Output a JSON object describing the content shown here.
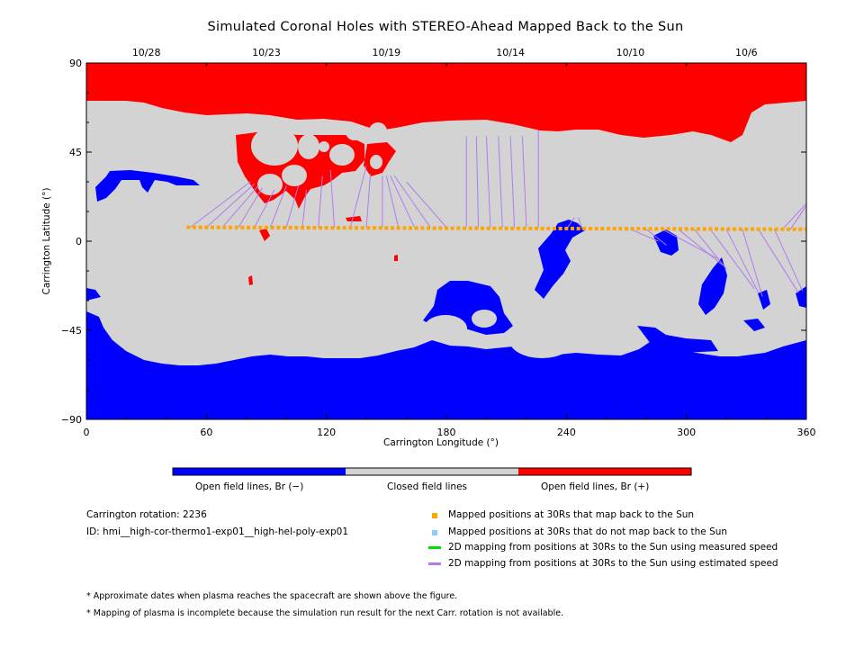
{
  "chart_data": {
    "type": "heatmap",
    "title": "Simulated Coronal Holes with STEREO-Ahead Mapped Back to the Sun",
    "xlabel": "Carrington Longitude (°)",
    "ylabel": "Carrington Latitude (°)",
    "xlim": [
      0,
      360
    ],
    "ylim": [
      -90,
      90
    ],
    "x_ticks": [
      0,
      60,
      120,
      180,
      240,
      300,
      360
    ],
    "y_ticks": [
      90,
      45,
      0,
      -45,
      -90
    ],
    "y_tick_labels": [
      "90",
      "45",
      "0",
      "−45",
      "−90"
    ],
    "top_axis_dates": [
      {
        "label": "10/28",
        "lon": 30
      },
      {
        "label": "10/23",
        "lon": 90
      },
      {
        "label": "10/19",
        "lon": 150
      },
      {
        "label": "10/14",
        "lon": 212
      },
      {
        "label": "10/10",
        "lon": 272
      },
      {
        "label": "10/6",
        "lon": 330
      }
    ],
    "categories": [
      "Open field lines, Br (−)",
      "Closed field lines",
      "Open field lines, Br (+)"
    ],
    "category_colors": [
      "#0000ff",
      "#d3d3d3",
      "#ff0000"
    ],
    "mapped_positions": {
      "lon_start": 51,
      "lon_end": 360,
      "lat_start": 7,
      "lat_end": 6,
      "color": "#ffa500"
    },
    "estimated_speed_lines": [
      {
        "from_lon": 52,
        "from_lat": 7,
        "to_lon": 82,
        "to_lat": 30
      },
      {
        "from_lon": 60,
        "from_lat": 7,
        "to_lon": 84,
        "to_lat": 29
      },
      {
        "from_lon": 68,
        "from_lat": 7,
        "to_lon": 86,
        "to_lat": 28
      },
      {
        "from_lon": 76,
        "from_lat": 7,
        "to_lon": 88,
        "to_lat": 27
      },
      {
        "from_lon": 84,
        "from_lat": 7,
        "to_lon": 94,
        "to_lat": 26
      },
      {
        "from_lon": 92,
        "from_lat": 7,
        "to_lon": 100,
        "to_lat": 28
      },
      {
        "from_lon": 100,
        "from_lat": 7,
        "to_lon": 106,
        "to_lat": 28
      },
      {
        "from_lon": 108,
        "from_lat": 7,
        "to_lon": 110,
        "to_lat": 26
      },
      {
        "from_lon": 116,
        "from_lat": 7,
        "to_lon": 118,
        "to_lat": 33
      },
      {
        "from_lon": 124,
        "from_lat": 7,
        "to_lon": 122,
        "to_lat": 36
      },
      {
        "from_lon": 132,
        "from_lat": 7,
        "to_lon": 140,
        "to_lat": 38
      },
      {
        "from_lon": 140,
        "from_lat": 7,
        "to_lon": 142,
        "to_lat": 34
      },
      {
        "from_lon": 148,
        "from_lat": 7,
        "to_lon": 148,
        "to_lat": 33
      },
      {
        "from_lon": 156,
        "from_lat": 7,
        "to_lon": 150,
        "to_lat": 33
      },
      {
        "from_lon": 164,
        "from_lat": 7,
        "to_lon": 152,
        "to_lat": 33
      },
      {
        "from_lon": 172,
        "from_lat": 7,
        "to_lon": 154,
        "to_lat": 33
      },
      {
        "from_lon": 180,
        "from_lat": 7,
        "to_lon": 160,
        "to_lat": 30
      },
      {
        "from_lon": 190,
        "from_lat": 7,
        "to_lon": 190,
        "to_lat": 53
      },
      {
        "from_lon": 196,
        "from_lat": 7,
        "to_lon": 195,
        "to_lat": 53
      },
      {
        "from_lon": 202,
        "from_lat": 7,
        "to_lon": 200,
        "to_lat": 53
      },
      {
        "from_lon": 208,
        "from_lat": 7,
        "to_lon": 206,
        "to_lat": 53
      },
      {
        "from_lon": 214,
        "from_lat": 7,
        "to_lon": 212,
        "to_lat": 53
      },
      {
        "from_lon": 220,
        "from_lat": 7,
        "to_lon": 218,
        "to_lat": 53
      },
      {
        "from_lon": 226,
        "from_lat": 7,
        "to_lon": 226,
        "to_lat": 56
      },
      {
        "from_lon": 240,
        "from_lat": 6,
        "to_lon": 244,
        "to_lat": 12
      },
      {
        "from_lon": 248,
        "from_lat": 6,
        "to_lon": 246,
        "to_lat": 12
      },
      {
        "from_lon": 272,
        "from_lat": 6,
        "to_lon": 286,
        "to_lat": 0
      },
      {
        "from_lon": 280,
        "from_lat": 6,
        "to_lon": 290,
        "to_lat": -2
      },
      {
        "from_lon": 288,
        "from_lat": 6,
        "to_lon": 316,
        "to_lat": -9
      },
      {
        "from_lon": 296,
        "from_lat": 6,
        "to_lon": 318,
        "to_lat": -12
      },
      {
        "from_lon": 304,
        "from_lat": 6,
        "to_lon": 320,
        "to_lat": -14
      },
      {
        "from_lon": 312,
        "from_lat": 6,
        "to_lon": 334,
        "to_lat": -24
      },
      {
        "from_lon": 320,
        "from_lat": 6,
        "to_lon": 336,
        "to_lat": -26
      },
      {
        "from_lon": 328,
        "from_lat": 6,
        "to_lon": 338,
        "to_lat": -28
      },
      {
        "from_lon": 336,
        "from_lat": 6,
        "to_lon": 356,
        "to_lat": -26
      },
      {
        "from_lon": 344,
        "from_lat": 6,
        "to_lon": 358,
        "to_lat": -25
      },
      {
        "from_lon": 348,
        "from_lat": 6,
        "to_lon": 360,
        "to_lat": 19
      },
      {
        "from_lon": 352,
        "from_lat": 6,
        "to_lon": 360,
        "to_lat": 18
      }
    ]
  },
  "colorbar": {
    "labels": [
      "Open field lines, Br (−)",
      "Closed field lines",
      "Open field lines, Br (+)"
    ]
  },
  "info": {
    "rotation": "Carrington rotation: 2236",
    "id": "ID: hmi__high-cor-thermo1-exp01__high-hel-poly-exp01"
  },
  "legend": [
    {
      "label": "Mapped positions at 30Rs that map back to the Sun",
      "color": "#ffa500",
      "kind": "square"
    },
    {
      "label": "Mapped positions at 30Rs that do not map back to the Sun",
      "color": "#87cefa",
      "kind": "square"
    },
    {
      "label": "2D mapping from positions at 30Rs to the Sun using measured speed",
      "color": "#00e000",
      "kind": "line"
    },
    {
      "label": "2D mapping from positions at 30Rs to the Sun using estimated speed",
      "color": "#b07cf0",
      "kind": "line"
    }
  ],
  "notes": [
    "* Approximate dates when plasma reaches the spacecraft are shown above the figure.",
    "* Mapping of plasma is incomplete because the simulation run result for the next Carr. rotation is not available."
  ]
}
